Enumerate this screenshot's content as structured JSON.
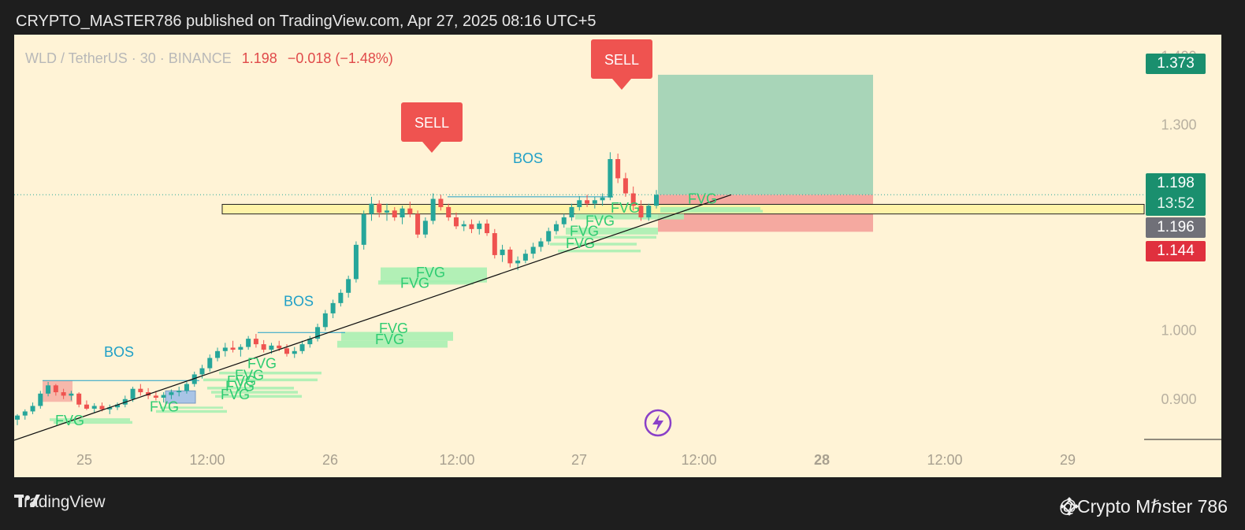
{
  "header": "CRYPTO_MASTER786 published on TradingView.com, Apr 27, 2025 08:16 UTC+5",
  "legend": {
    "symbol": "WLD / TetherUS · 30 · BINANCE",
    "price": "1.198",
    "change": "−0.018 (−1.48%)"
  },
  "price_tags": {
    "target": "1.373",
    "current": "1.198",
    "countdown": "13:52",
    "gray": "1.196",
    "stop": "1.144"
  },
  "annotations": {
    "sell_1": "SELL",
    "sell_2": "SELL",
    "bos_1": "BOS",
    "bos_2": "BOS",
    "bos_3": "BOS",
    "fvg": "FVG"
  },
  "footer": {
    "brand": "TradingView",
    "author": "@Crypto Mℏster 786"
  },
  "colors": {
    "up": "#26a69a",
    "down": "#ef5350",
    "fvg_fill": "#a5eeb0",
    "fvg_text": "#2ecc71",
    "bos_text": "#1e9fc7",
    "target_zone": "#a8d5b8",
    "stop_zone": "#f5a9a0",
    "background": "#fff3d6"
  },
  "chart_data": {
    "type": "candlestick",
    "y_ticks": [
      "1.400",
      "1.300",
      "1.000",
      "0.900"
    ],
    "x_ticks": [
      "25",
      "12:00",
      "26",
      "12:00",
      "27",
      "12:00",
      "28",
      "12:00",
      "29"
    ],
    "ylim": [
      0.84,
      1.42
    ],
    "candles": [
      [
        0.87,
        0.878,
        0.862,
        0.876
      ],
      [
        0.876,
        0.885,
        0.87,
        0.882
      ],
      [
        0.882,
        0.895,
        0.878,
        0.89
      ],
      [
        0.89,
        0.912,
        0.886,
        0.908
      ],
      [
        0.908,
        0.925,
        0.904,
        0.92
      ],
      [
        0.92,
        0.922,
        0.905,
        0.91
      ],
      [
        0.91,
        0.915,
        0.9,
        0.905
      ],
      [
        0.905,
        0.912,
        0.898,
        0.908
      ],
      [
        0.908,
        0.91,
        0.888,
        0.892
      ],
      [
        0.892,
        0.898,
        0.884,
        0.886
      ],
      [
        0.886,
        0.894,
        0.88,
        0.89
      ],
      [
        0.89,
        0.895,
        0.882,
        0.885
      ],
      [
        0.885,
        0.892,
        0.878,
        0.888
      ],
      [
        0.888,
        0.895,
        0.884,
        0.892
      ],
      [
        0.892,
        0.905,
        0.888,
        0.9
      ],
      [
        0.9,
        0.918,
        0.896,
        0.915
      ],
      [
        0.915,
        0.922,
        0.905,
        0.91
      ],
      [
        0.91,
        0.916,
        0.9,
        0.905
      ],
      [
        0.905,
        0.912,
        0.898,
        0.902
      ],
      [
        0.902,
        0.91,
        0.895,
        0.906
      ],
      [
        0.906,
        0.914,
        0.9,
        0.91
      ],
      [
        0.91,
        0.918,
        0.904,
        0.912
      ],
      [
        0.912,
        0.925,
        0.908,
        0.922
      ],
      [
        0.922,
        0.94,
        0.918,
        0.936
      ],
      [
        0.936,
        0.95,
        0.93,
        0.945
      ],
      [
        0.945,
        0.965,
        0.94,
        0.96
      ],
      [
        0.96,
        0.975,
        0.955,
        0.97
      ],
      [
        0.97,
        0.982,
        0.962,
        0.975
      ],
      [
        0.975,
        0.985,
        0.968,
        0.972
      ],
      [
        0.972,
        0.98,
        0.962,
        0.976
      ],
      [
        0.976,
        0.992,
        0.972,
        0.988
      ],
      [
        0.988,
        0.995,
        0.975,
        0.98
      ],
      [
        0.98,
        0.986,
        0.968,
        0.972
      ],
      [
        0.972,
        0.982,
        0.966,
        0.978
      ],
      [
        0.978,
        0.985,
        0.97,
        0.974
      ],
      [
        0.974,
        0.98,
        0.962,
        0.966
      ],
      [
        0.966,
        0.976,
        0.96,
        0.97
      ],
      [
        0.97,
        0.985,
        0.966,
        0.98
      ],
      [
        0.98,
        0.992,
        0.975,
        0.988
      ],
      [
        0.988,
        1.01,
        0.984,
        1.005
      ],
      [
        1.005,
        1.03,
        1.0,
        1.025
      ],
      [
        1.025,
        1.045,
        1.018,
        1.04
      ],
      [
        1.04,
        1.06,
        1.035,
        1.055
      ],
      [
        1.055,
        1.08,
        1.048,
        1.075
      ],
      [
        1.075,
        1.13,
        1.07,
        1.125
      ],
      [
        1.125,
        1.175,
        1.118,
        1.17
      ],
      [
        1.17,
        1.195,
        1.16,
        1.185
      ],
      [
        1.185,
        1.19,
        1.165,
        1.172
      ],
      [
        1.172,
        1.185,
        1.16,
        1.175
      ],
      [
        1.175,
        1.18,
        1.16,
        1.165
      ],
      [
        1.165,
        1.182,
        1.155,
        1.178
      ],
      [
        1.178,
        1.188,
        1.165,
        1.17
      ],
      [
        1.17,
        1.175,
        1.135,
        1.14
      ],
      [
        1.14,
        1.165,
        1.135,
        1.16
      ],
      [
        1.16,
        1.2,
        1.155,
        1.192
      ],
      [
        1.192,
        1.198,
        1.175,
        1.18
      ],
      [
        1.18,
        1.185,
        1.16,
        1.165
      ],
      [
        1.165,
        1.172,
        1.148,
        1.152
      ],
      [
        1.152,
        1.16,
        1.145,
        1.155
      ],
      [
        1.155,
        1.162,
        1.142,
        1.148
      ],
      [
        1.148,
        1.16,
        1.14,
        1.156
      ],
      [
        1.156,
        1.162,
        1.138,
        1.142
      ],
      [
        1.142,
        1.148,
        1.105,
        1.11
      ],
      [
        1.11,
        1.125,
        1.1,
        1.118
      ],
      [
        1.118,
        1.122,
        1.092,
        1.098
      ],
      [
        1.098,
        1.108,
        1.088,
        1.102
      ],
      [
        1.102,
        1.118,
        1.098,
        1.112
      ],
      [
        1.112,
        1.128,
        1.105,
        1.122
      ],
      [
        1.122,
        1.135,
        1.115,
        1.13
      ],
      [
        1.13,
        1.15,
        1.125,
        1.145
      ],
      [
        1.145,
        1.16,
        1.14,
        1.155
      ],
      [
        1.155,
        1.17,
        1.15,
        1.165
      ],
      [
        1.165,
        1.185,
        1.16,
        1.18
      ],
      [
        1.18,
        1.196,
        1.175,
        1.19
      ],
      [
        1.19,
        1.198,
        1.18,
        1.185
      ],
      [
        1.185,
        1.195,
        1.178,
        1.19
      ],
      [
        1.19,
        1.2,
        1.182,
        1.194
      ],
      [
        1.194,
        1.26,
        1.19,
        1.25
      ],
      [
        1.25,
        1.258,
        1.215,
        1.222
      ],
      [
        1.222,
        1.23,
        1.195,
        1.2
      ],
      [
        1.2,
        1.21,
        1.175,
        1.182
      ],
      [
        1.182,
        1.19,
        1.16,
        1.165
      ],
      [
        1.165,
        1.185,
        1.16,
        1.182
      ],
      [
        1.182,
        1.205,
        1.178,
        1.198
      ]
    ]
  }
}
